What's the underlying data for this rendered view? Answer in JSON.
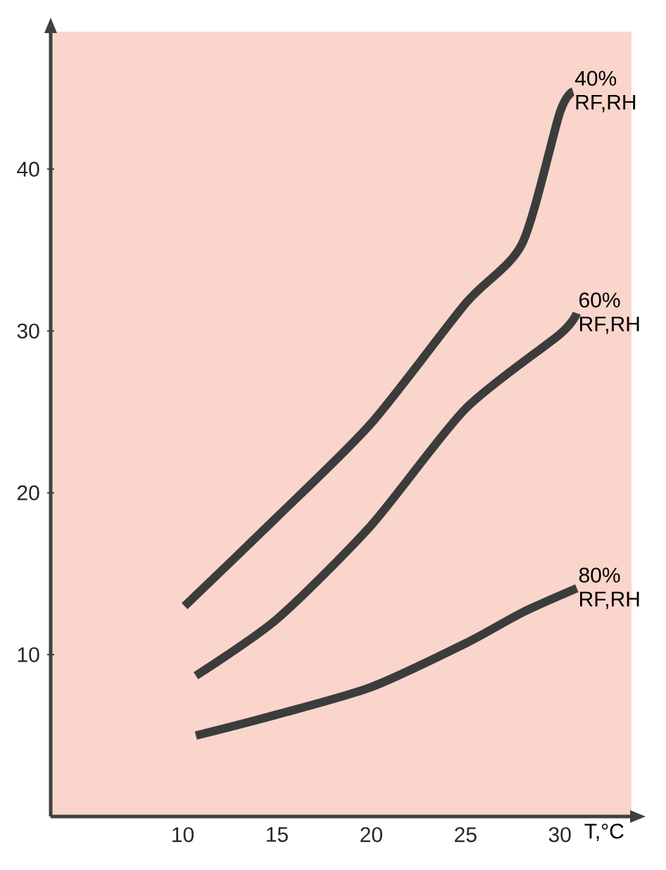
{
  "chart_data": {
    "type": "line",
    "xlabel": "T,°C",
    "xlim": [
      3,
      33.8
    ],
    "ylim": [
      0,
      48.5
    ],
    "xticks": [
      10,
      15,
      20,
      25,
      30
    ],
    "yticks": [
      10,
      20,
      30,
      40
    ],
    "series": [
      {
        "name": "40% RF,RH",
        "color": "#3c3c3c",
        "x": [
          10.1,
          15,
          20,
          25,
          28,
          30,
          30.7
        ],
        "values": [
          13.0,
          18.5,
          24.3,
          31.7,
          35.4,
          43.5,
          44.8
        ]
      },
      {
        "name": "60% RF,RH",
        "color": "#3c3c3c",
        "x": [
          10.7,
          15,
          20,
          25,
          30,
          30.9
        ],
        "values": [
          8.7,
          12.2,
          18.0,
          25.2,
          29.8,
          31.1
        ]
      },
      {
        "name": "80% RF,RH",
        "color": "#3c3c3c",
        "x": [
          10.7,
          15,
          20,
          25,
          28,
          30.9
        ],
        "values": [
          5.0,
          6.3,
          8.0,
          10.7,
          12.6,
          14.1
        ]
      }
    ]
  }
}
